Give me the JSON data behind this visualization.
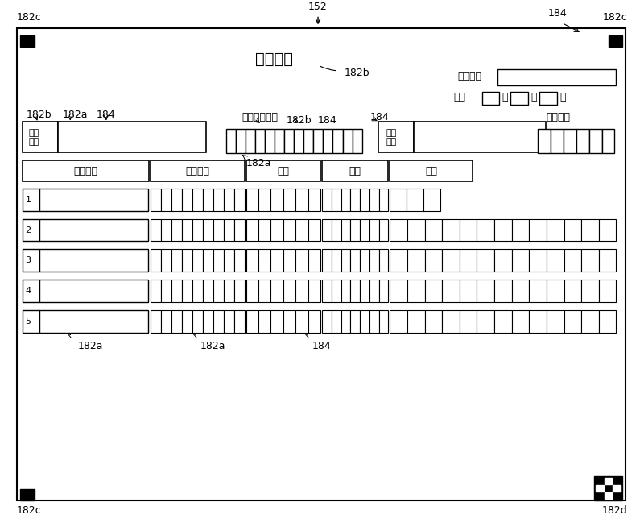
{
  "bg_color": "#ffffff",
  "border_color": "#000000",
  "title": "采购发票",
  "label_152": "152",
  "label_184_top": "184",
  "label_182b_title": "182b",
  "label_182c_tl": "182c",
  "label_182c_tr": "182c",
  "label_182c_bl": "182c",
  "label_182d_br": "182d",
  "invoice_no_label": "发票编号",
  "heisei_label": "平成",
  "nen_label": "年",
  "tsuki_label": "月",
  "hi_label": "日",
  "company_name_label": "公司\n名称",
  "company_code_label": "公司名称代码",
  "customer_name_label": "客户\n名称",
  "customer_code_label": "客户代码",
  "col_headers": [
    "商品名称",
    "商品代码",
    "数量",
    "单价",
    "金额"
  ],
  "row_numbers": [
    "1",
    "2",
    "3",
    "4",
    "5"
  ],
  "label_182b_left": "182b",
  "label_182a_left": "182a",
  "label_184_left": "184",
  "label_182b_mid": "182b",
  "label_184_mid": "184",
  "label_182a_mid": "182a",
  "label_182a_bot1": "182a",
  "label_182a_bot2": "182a",
  "label_184_bot": "184"
}
